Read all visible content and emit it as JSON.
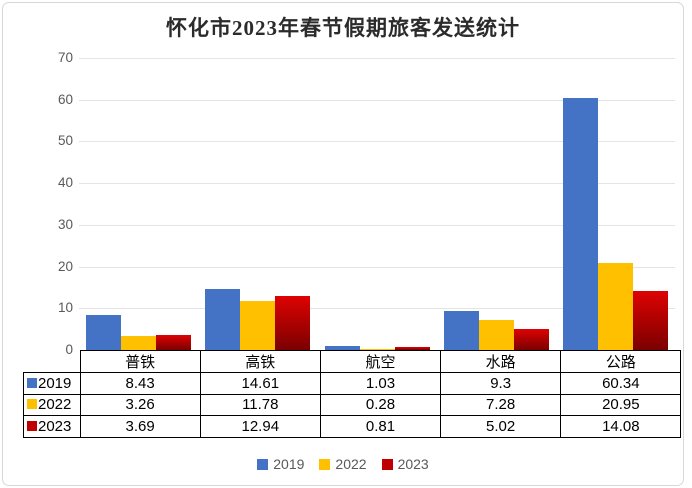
{
  "title": "怀化市2023年春节假期旅客发送统计",
  "chart_data": {
    "type": "bar",
    "title": "怀化市2023年春节假期旅客发送统计",
    "categories": [
      "普铁",
      "高铁",
      "航空",
      "水路",
      "公路"
    ],
    "series": [
      {
        "name": "2019",
        "color": "#4472C4",
        "values": [
          8.43,
          14.61,
          1.03,
          9.3,
          60.34
        ]
      },
      {
        "name": "2022",
        "color": "#FFC000",
        "values": [
          3.26,
          11.78,
          0.28,
          7.28,
          20.95
        ]
      },
      {
        "name": "2023",
        "color": "#C00000",
        "gradient": [
          "#DE0202",
          "#7B0000"
        ],
        "values": [
          3.69,
          12.94,
          0.81,
          5.02,
          14.08
        ]
      }
    ],
    "value_labels": [
      [
        "8.43",
        "14.61",
        "1.03",
        "9.3",
        "60.34"
      ],
      [
        "3.26",
        "11.78",
        "0.28",
        "7.28",
        "20.95"
      ],
      [
        "3.69",
        "12.94",
        "0.81",
        "5.02",
        "14.08"
      ]
    ],
    "ylim": [
      0,
      70
    ],
    "yticks": [
      0,
      10,
      20,
      30,
      40,
      50,
      60,
      70
    ],
    "grid": true,
    "legend_position": "bottom",
    "legend_labels": [
      "2019",
      "2022",
      "2023"
    ],
    "data_table_shown": true,
    "colors": {
      "grid": "#e4e4e4",
      "axis_text": "#595959",
      "table_border": "#000000",
      "title_text": "#2b2b2b"
    }
  }
}
